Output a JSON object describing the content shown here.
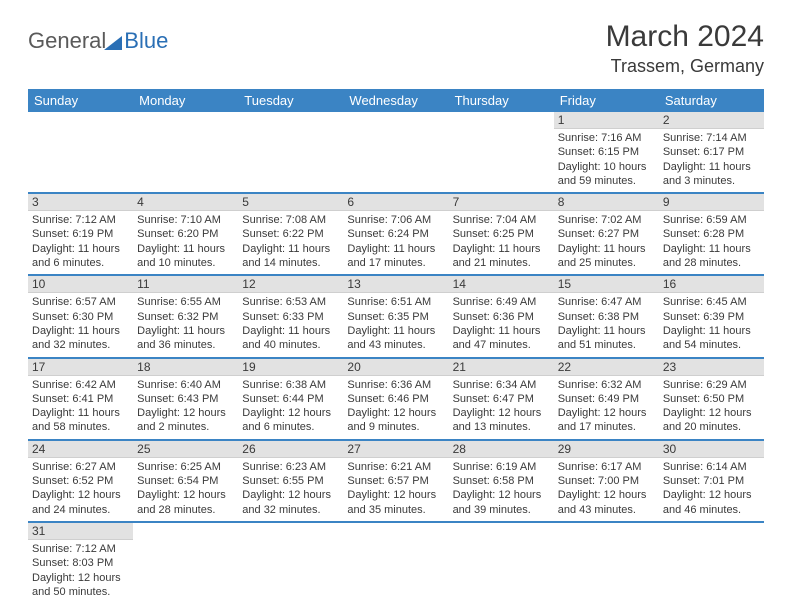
{
  "logo": {
    "part1": "General",
    "part2": "Blue"
  },
  "title": "March 2024",
  "location": "Trassem, Germany",
  "colors": {
    "header_bg": "#3b84c4",
    "daynum_bg": "#e2e2e2",
    "text": "#3a3a3a"
  },
  "dow": [
    "Sunday",
    "Monday",
    "Tuesday",
    "Wednesday",
    "Thursday",
    "Friday",
    "Saturday"
  ],
  "weeks": [
    [
      null,
      null,
      null,
      null,
      null,
      {
        "n": "1",
        "sr": "Sunrise: 7:16 AM",
        "ss": "Sunset: 6:15 PM",
        "dl1": "Daylight: 10 hours",
        "dl2": "and 59 minutes."
      },
      {
        "n": "2",
        "sr": "Sunrise: 7:14 AM",
        "ss": "Sunset: 6:17 PM",
        "dl1": "Daylight: 11 hours",
        "dl2": "and 3 minutes."
      }
    ],
    [
      {
        "n": "3",
        "sr": "Sunrise: 7:12 AM",
        "ss": "Sunset: 6:19 PM",
        "dl1": "Daylight: 11 hours",
        "dl2": "and 6 minutes."
      },
      {
        "n": "4",
        "sr": "Sunrise: 7:10 AM",
        "ss": "Sunset: 6:20 PM",
        "dl1": "Daylight: 11 hours",
        "dl2": "and 10 minutes."
      },
      {
        "n": "5",
        "sr": "Sunrise: 7:08 AM",
        "ss": "Sunset: 6:22 PM",
        "dl1": "Daylight: 11 hours",
        "dl2": "and 14 minutes."
      },
      {
        "n": "6",
        "sr": "Sunrise: 7:06 AM",
        "ss": "Sunset: 6:24 PM",
        "dl1": "Daylight: 11 hours",
        "dl2": "and 17 minutes."
      },
      {
        "n": "7",
        "sr": "Sunrise: 7:04 AM",
        "ss": "Sunset: 6:25 PM",
        "dl1": "Daylight: 11 hours",
        "dl2": "and 21 minutes."
      },
      {
        "n": "8",
        "sr": "Sunrise: 7:02 AM",
        "ss": "Sunset: 6:27 PM",
        "dl1": "Daylight: 11 hours",
        "dl2": "and 25 minutes."
      },
      {
        "n": "9",
        "sr": "Sunrise: 6:59 AM",
        "ss": "Sunset: 6:28 PM",
        "dl1": "Daylight: 11 hours",
        "dl2": "and 28 minutes."
      }
    ],
    [
      {
        "n": "10",
        "sr": "Sunrise: 6:57 AM",
        "ss": "Sunset: 6:30 PM",
        "dl1": "Daylight: 11 hours",
        "dl2": "and 32 minutes."
      },
      {
        "n": "11",
        "sr": "Sunrise: 6:55 AM",
        "ss": "Sunset: 6:32 PM",
        "dl1": "Daylight: 11 hours",
        "dl2": "and 36 minutes."
      },
      {
        "n": "12",
        "sr": "Sunrise: 6:53 AM",
        "ss": "Sunset: 6:33 PM",
        "dl1": "Daylight: 11 hours",
        "dl2": "and 40 minutes."
      },
      {
        "n": "13",
        "sr": "Sunrise: 6:51 AM",
        "ss": "Sunset: 6:35 PM",
        "dl1": "Daylight: 11 hours",
        "dl2": "and 43 minutes."
      },
      {
        "n": "14",
        "sr": "Sunrise: 6:49 AM",
        "ss": "Sunset: 6:36 PM",
        "dl1": "Daylight: 11 hours",
        "dl2": "and 47 minutes."
      },
      {
        "n": "15",
        "sr": "Sunrise: 6:47 AM",
        "ss": "Sunset: 6:38 PM",
        "dl1": "Daylight: 11 hours",
        "dl2": "and 51 minutes."
      },
      {
        "n": "16",
        "sr": "Sunrise: 6:45 AM",
        "ss": "Sunset: 6:39 PM",
        "dl1": "Daylight: 11 hours",
        "dl2": "and 54 minutes."
      }
    ],
    [
      {
        "n": "17",
        "sr": "Sunrise: 6:42 AM",
        "ss": "Sunset: 6:41 PM",
        "dl1": "Daylight: 11 hours",
        "dl2": "and 58 minutes."
      },
      {
        "n": "18",
        "sr": "Sunrise: 6:40 AM",
        "ss": "Sunset: 6:43 PM",
        "dl1": "Daylight: 12 hours",
        "dl2": "and 2 minutes."
      },
      {
        "n": "19",
        "sr": "Sunrise: 6:38 AM",
        "ss": "Sunset: 6:44 PM",
        "dl1": "Daylight: 12 hours",
        "dl2": "and 6 minutes."
      },
      {
        "n": "20",
        "sr": "Sunrise: 6:36 AM",
        "ss": "Sunset: 6:46 PM",
        "dl1": "Daylight: 12 hours",
        "dl2": "and 9 minutes."
      },
      {
        "n": "21",
        "sr": "Sunrise: 6:34 AM",
        "ss": "Sunset: 6:47 PM",
        "dl1": "Daylight: 12 hours",
        "dl2": "and 13 minutes."
      },
      {
        "n": "22",
        "sr": "Sunrise: 6:32 AM",
        "ss": "Sunset: 6:49 PM",
        "dl1": "Daylight: 12 hours",
        "dl2": "and 17 minutes."
      },
      {
        "n": "23",
        "sr": "Sunrise: 6:29 AM",
        "ss": "Sunset: 6:50 PM",
        "dl1": "Daylight: 12 hours",
        "dl2": "and 20 minutes."
      }
    ],
    [
      {
        "n": "24",
        "sr": "Sunrise: 6:27 AM",
        "ss": "Sunset: 6:52 PM",
        "dl1": "Daylight: 12 hours",
        "dl2": "and 24 minutes."
      },
      {
        "n": "25",
        "sr": "Sunrise: 6:25 AM",
        "ss": "Sunset: 6:54 PM",
        "dl1": "Daylight: 12 hours",
        "dl2": "and 28 minutes."
      },
      {
        "n": "26",
        "sr": "Sunrise: 6:23 AM",
        "ss": "Sunset: 6:55 PM",
        "dl1": "Daylight: 12 hours",
        "dl2": "and 32 minutes."
      },
      {
        "n": "27",
        "sr": "Sunrise: 6:21 AM",
        "ss": "Sunset: 6:57 PM",
        "dl1": "Daylight: 12 hours",
        "dl2": "and 35 minutes."
      },
      {
        "n": "28",
        "sr": "Sunrise: 6:19 AM",
        "ss": "Sunset: 6:58 PM",
        "dl1": "Daylight: 12 hours",
        "dl2": "and 39 minutes."
      },
      {
        "n": "29",
        "sr": "Sunrise: 6:17 AM",
        "ss": "Sunset: 7:00 PM",
        "dl1": "Daylight: 12 hours",
        "dl2": "and 43 minutes."
      },
      {
        "n": "30",
        "sr": "Sunrise: 6:14 AM",
        "ss": "Sunset: 7:01 PM",
        "dl1": "Daylight: 12 hours",
        "dl2": "and 46 minutes."
      }
    ],
    [
      {
        "n": "31",
        "sr": "Sunrise: 7:12 AM",
        "ss": "Sunset: 8:03 PM",
        "dl1": "Daylight: 12 hours",
        "dl2": "and 50 minutes."
      },
      null,
      null,
      null,
      null,
      null,
      null
    ]
  ]
}
